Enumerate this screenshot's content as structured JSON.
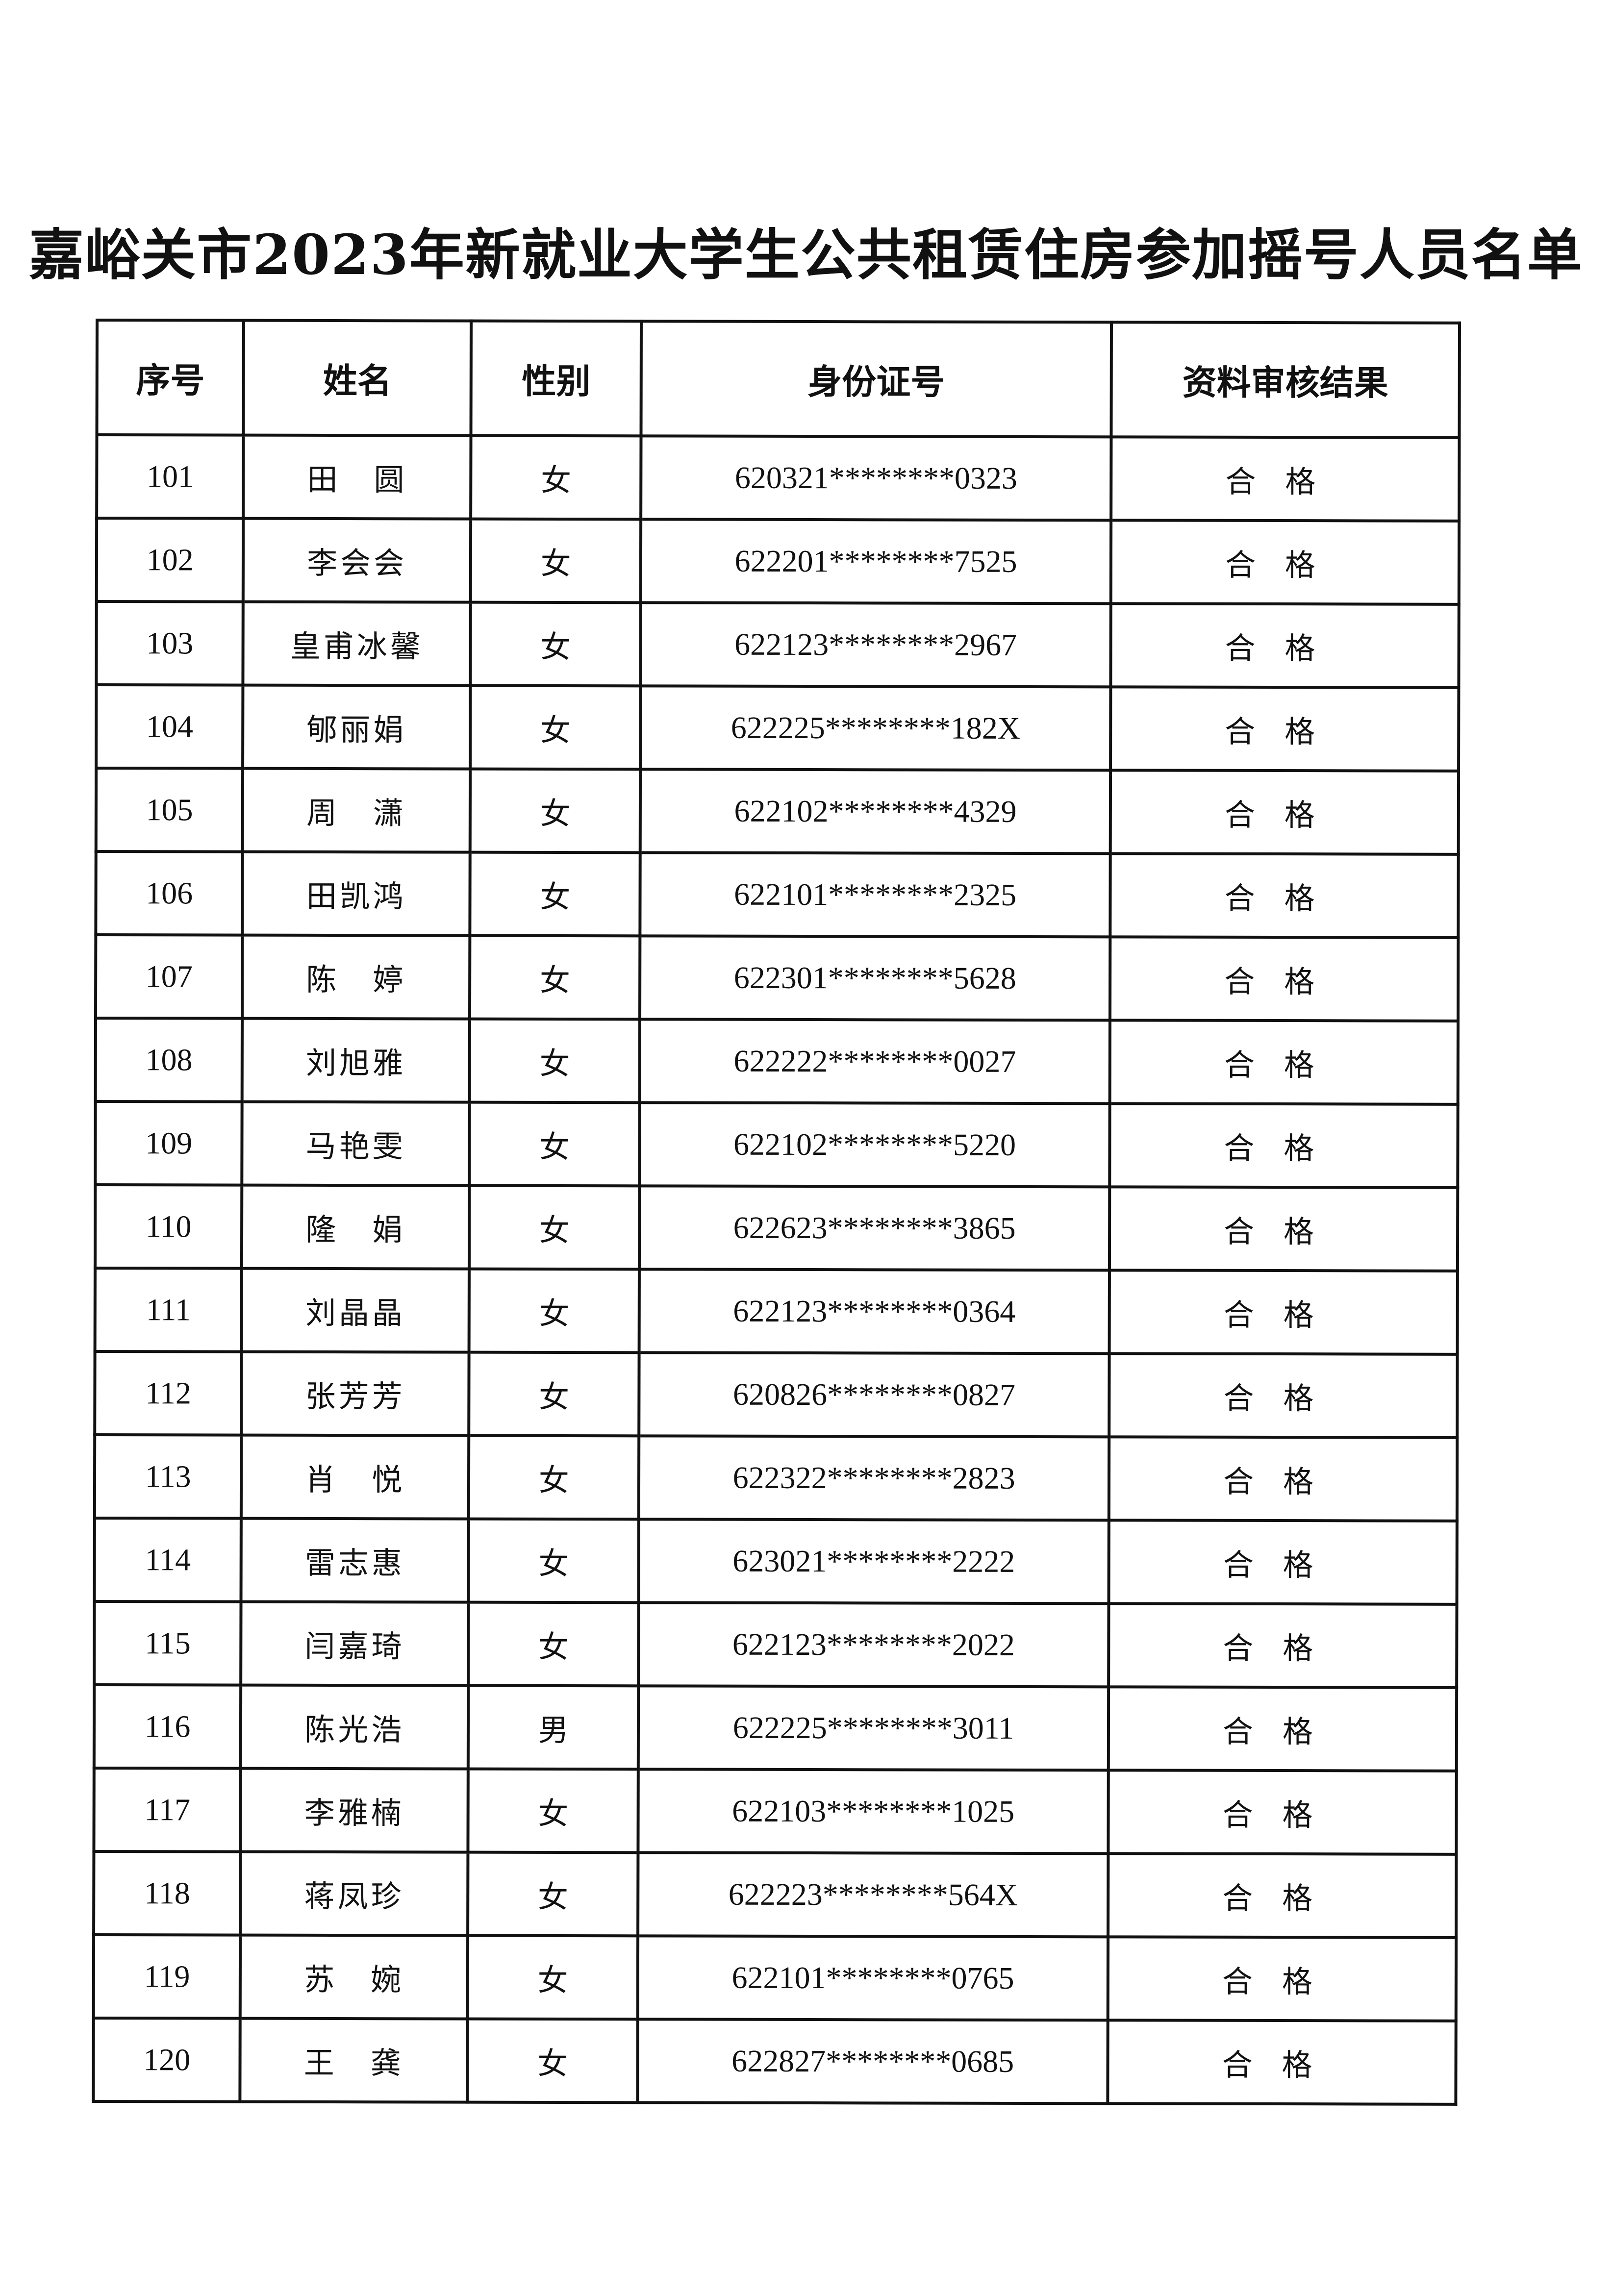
{
  "title": "嘉峪关市2023年新就业大学生公共租赁住房参加摇号人员名单",
  "columns": [
    "序号",
    "姓名",
    "性别",
    "身份证号",
    "资料审核结果"
  ],
  "rows": [
    [
      "101",
      "田　圆",
      "女",
      "620321********0323",
      "合格"
    ],
    [
      "102",
      "李会会",
      "女",
      "622201********7525",
      "合格"
    ],
    [
      "103",
      "皇甫冰馨",
      "女",
      "622123********2967",
      "合格"
    ],
    [
      "104",
      "郇丽娟",
      "女",
      "622225********182X",
      "合格"
    ],
    [
      "105",
      "周　潇",
      "女",
      "622102********4329",
      "合格"
    ],
    [
      "106",
      "田凯鸿",
      "女",
      "622101********2325",
      "合格"
    ],
    [
      "107",
      "陈　婷",
      "女",
      "622301********5628",
      "合格"
    ],
    [
      "108",
      "刘旭雅",
      "女",
      "622222********0027",
      "合格"
    ],
    [
      "109",
      "马艳雯",
      "女",
      "622102********5220",
      "合格"
    ],
    [
      "110",
      "隆　娟",
      "女",
      "622623********3865",
      "合格"
    ],
    [
      "111",
      "刘晶晶",
      "女",
      "622123********0364",
      "合格"
    ],
    [
      "112",
      "张芳芳",
      "女",
      "620826********0827",
      "合格"
    ],
    [
      "113",
      "肖　悦",
      "女",
      "622322********2823",
      "合格"
    ],
    [
      "114",
      "雷志惠",
      "女",
      "623021********2222",
      "合格"
    ],
    [
      "115",
      "闫嘉琦",
      "女",
      "622123********2022",
      "合格"
    ],
    [
      "116",
      "陈光浩",
      "男",
      "622225********3011",
      "合格"
    ],
    [
      "117",
      "李雅楠",
      "女",
      "622103********1025",
      "合格"
    ],
    [
      "118",
      "蒋凤珍",
      "女",
      "622223********564X",
      "合格"
    ],
    [
      "119",
      "苏　婉",
      "女",
      "622101********0765",
      "合格"
    ],
    [
      "120",
      "王　龚",
      "女",
      "622827********0685",
      "合格"
    ]
  ]
}
